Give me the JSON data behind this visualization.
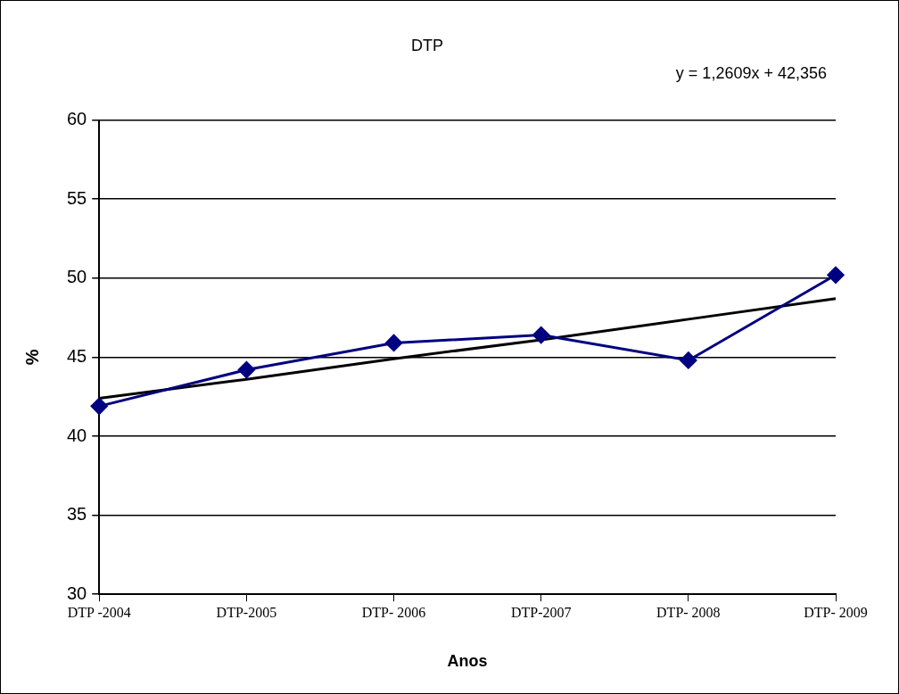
{
  "chart_data": {
    "type": "line",
    "title": "DTP",
    "xlabel": "Anos",
    "ylabel": "%",
    "categories": [
      "DTP -2004",
      "DTP-2005",
      "DTP- 2006",
      "DTP-2007",
      "DTP- 2008",
      "DTP- 2009"
    ],
    "series": [
      {
        "color": "#000080",
        "values": [
          41.9,
          44.2,
          45.9,
          46.4,
          44.8,
          50.2
        ],
        "marker": "diamond"
      },
      {
        "color": "#000000",
        "values": [
          42.4,
          43.6,
          44.9,
          46.1,
          47.4,
          48.7
        ],
        "marker": "none"
      }
    ],
    "annotations": [
      "y = 1,2609x + 42,356"
    ],
    "ylim": [
      30,
      60
    ],
    "yticks": [
      30,
      35,
      40,
      45,
      50,
      55,
      60
    ],
    "grid": "y",
    "legend": false
  }
}
